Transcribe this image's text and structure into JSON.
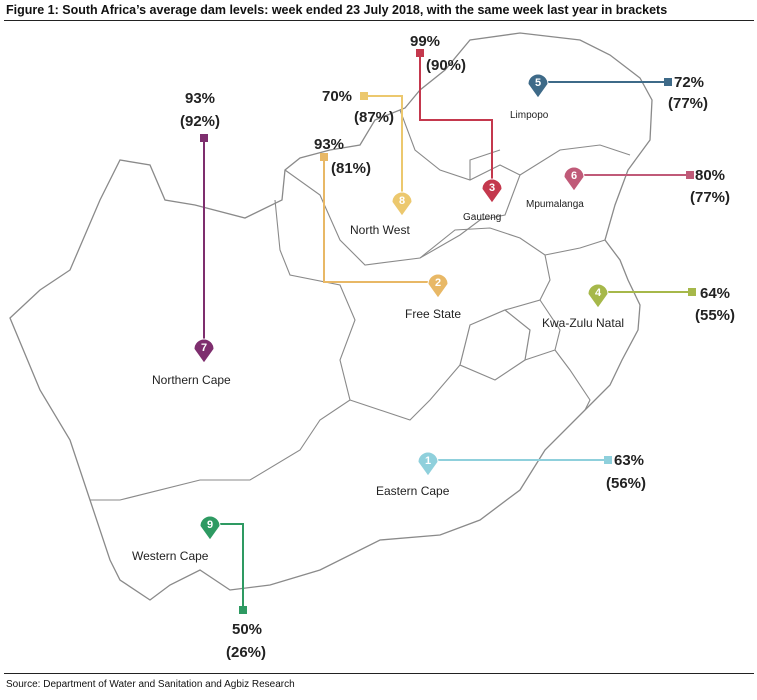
{
  "title": "Figure 1: South Africa’s average dam levels: week ended 23 July 2018, with the same week last year in brackets",
  "source": "Source: Department of Water and Sanitation and Agbiz Research",
  "provinces": [
    {
      "id": "eastern-cape",
      "number": "1",
      "name": "Eastern Cape",
      "current": "63%",
      "last_year": "(56%)",
      "color": "#8fd0dc"
    },
    {
      "id": "free-state",
      "number": "2",
      "name": "Free State",
      "current": "93%",
      "last_year": "(81%)",
      "color": "#e8b866"
    },
    {
      "id": "gauteng",
      "number": "3",
      "name": "Gauteng",
      "current": "99%",
      "last_year": "(90%)",
      "color": "#c4384d"
    },
    {
      "id": "kwazulu-natal",
      "number": "4",
      "name": "Kwa-Zulu Natal",
      "current": "64%",
      "last_year": "(55%)",
      "color": "#a6b84a"
    },
    {
      "id": "limpopo",
      "number": "5",
      "name": "Limpopo",
      "current": "72%",
      "last_year": "(77%)",
      "color": "#3e6a88"
    },
    {
      "id": "mpumalanga",
      "number": "6",
      "name": "Mpumalanga",
      "current": "80%",
      "last_year": "(77%)",
      "color": "#c05a78"
    },
    {
      "id": "northern-cape",
      "number": "7",
      "name": "Northern Cape",
      "current": "93%",
      "last_year": "(92%)",
      "color": "#7e2e6e"
    },
    {
      "id": "north-west",
      "number": "8",
      "name": "North West",
      "current": "70%",
      "last_year": "(87%)",
      "color": "#ecc86e"
    },
    {
      "id": "western-cape",
      "number": "9",
      "name": "Western Cape",
      "current": "50%",
      "last_year": "(26%)",
      "color": "#2e9a62"
    }
  ]
}
